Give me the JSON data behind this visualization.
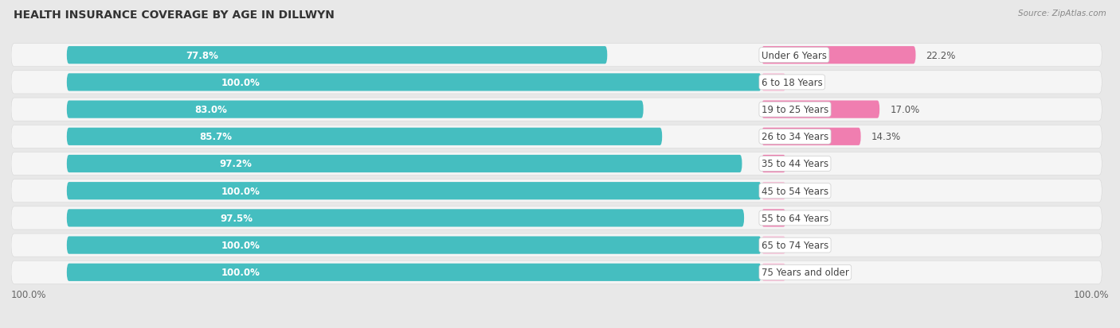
{
  "title": "HEALTH INSURANCE COVERAGE BY AGE IN DILLWYN",
  "source": "Source: ZipAtlas.com",
  "categories": [
    "Under 6 Years",
    "6 to 18 Years",
    "19 to 25 Years",
    "26 to 34 Years",
    "35 to 44 Years",
    "45 to 54 Years",
    "55 to 64 Years",
    "65 to 74 Years",
    "75 Years and older"
  ],
  "with_coverage": [
    77.8,
    100.0,
    83.0,
    85.7,
    97.2,
    100.0,
    97.5,
    100.0,
    100.0
  ],
  "without_coverage": [
    22.2,
    0.0,
    17.0,
    14.3,
    2.8,
    0.0,
    2.5,
    0.0,
    0.0
  ],
  "color_with": "#45BEC0",
  "color_without": "#F07EB0",
  "color_without_light": "#F9C0D8",
  "bg_color": "#e8e8e8",
  "row_bg": "#f0f0f0",
  "title_fontsize": 10,
  "bar_label_fontsize": 8.5,
  "cat_label_fontsize": 8.5,
  "legend_fontsize": 9,
  "axis_label_fontsize": 8.5
}
